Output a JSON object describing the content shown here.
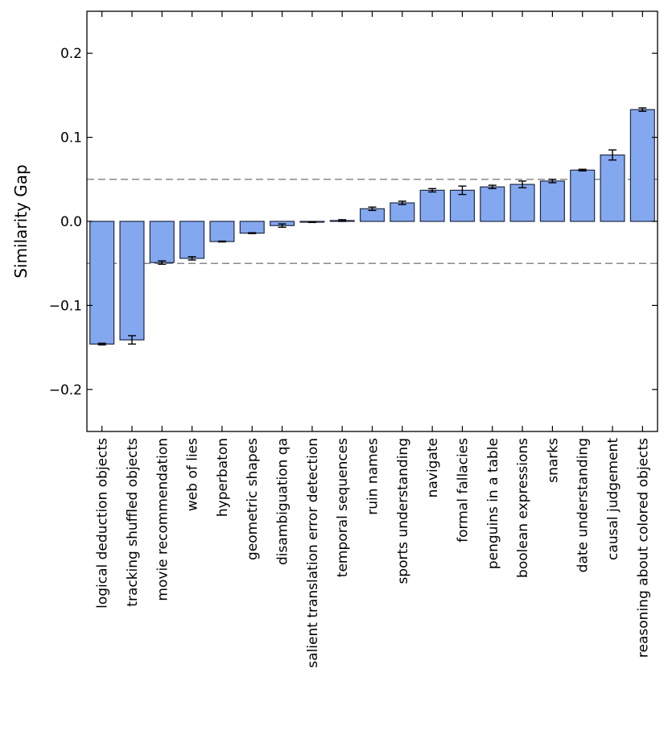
{
  "chart_data": {
    "type": "bar",
    "title": "",
    "xlabel": "",
    "ylabel": "Similarity Gap",
    "ylim": [
      -0.25,
      0.25
    ],
    "yticks": [
      -0.2,
      -0.1,
      0.0,
      0.1,
      0.2
    ],
    "ytick_labels": [
      "−0.2",
      "−0.1",
      "0.0",
      "0.1",
      "0.2"
    ],
    "reference_lines": [
      0.05,
      -0.05
    ],
    "categories": [
      "logical deduction objects",
      "tracking shuffled objects",
      "movie recommendation",
      "web of lies",
      "hyperbaton",
      "geometric shapes",
      "disambiguation qa",
      "salient translation error detection",
      "temporal sequences",
      "ruin names",
      "sports understanding",
      "navigate",
      "formal fallacies",
      "penguins in a table",
      "boolean expressions",
      "snarks",
      "date understanding",
      "causal judgement",
      "reasoning about colored objects"
    ],
    "values": [
      -0.146,
      -0.141,
      -0.049,
      -0.044,
      -0.024,
      -0.014,
      -0.005,
      -0.001,
      0.001,
      0.015,
      0.022,
      0.037,
      0.037,
      0.041,
      0.044,
      0.048,
      0.061,
      0.079,
      0.133
    ],
    "errors": [
      0.001,
      0.005,
      0.002,
      0.002,
      0.0005,
      0.0005,
      0.002,
      0.0003,
      0.001,
      0.002,
      0.002,
      0.002,
      0.005,
      0.002,
      0.004,
      0.002,
      0.001,
      0.006,
      0.002
    ],
    "bar_color": "#84a8f0",
    "bar_edge_color": "#1f2a44",
    "ref_line_color": "#8a8a8a"
  }
}
